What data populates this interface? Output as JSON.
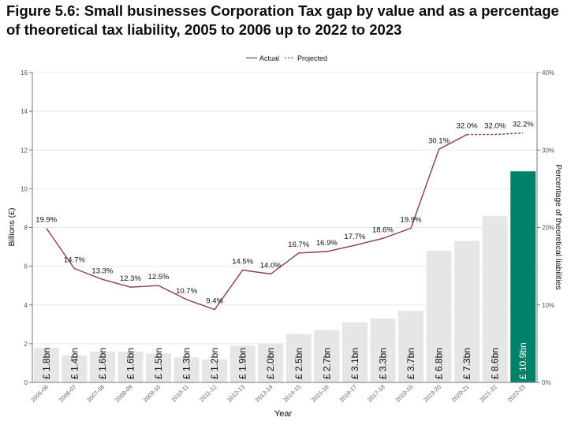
{
  "figure_title": "Figure 5.6: Small businesses Corporation Tax gap by value and as a percentage of theoretical tax liability, 2005 to 2006 up to 2022 to 2023",
  "colors": {
    "bar_default": "#e6e6e6",
    "bar_highlight": "#00826a",
    "line": "#8e3a48",
    "axis": "#767676",
    "grid": "#e8e8e8",
    "text": "#0b0c0c"
  },
  "chart_data": {
    "type": "bar+line",
    "categories": [
      "2005-06",
      "2006-07",
      "2007-08",
      "2008-09",
      "2009-10",
      "2010-11",
      "2011-12",
      "2012-13",
      "2013-14",
      "2014-15",
      "2015-16",
      "2016-17",
      "2017-18",
      "2018-19",
      "2019-20",
      "2020-21",
      "2021-22",
      "2022-23"
    ],
    "bars": {
      "values": [
        1.8,
        1.4,
        1.6,
        1.6,
        1.5,
        1.3,
        1.2,
        1.9,
        2.0,
        2.5,
        2.7,
        3.1,
        3.3,
        3.7,
        6.8,
        7.3,
        8.6,
        10.9
      ],
      "labels": [
        "£ 1.8bn",
        "£ 1.4bn",
        "£ 1.6bn",
        "£ 1.6bn",
        "£ 1.5bn",
        "£ 1.3bn",
        "£ 1.2bn",
        "£ 1.9bn",
        "£ 2.0bn",
        "£ 2.5bn",
        "£ 2.7bn",
        "£ 3.1bn",
        "£ 3.3bn",
        "£ 3.7bn",
        "£ 6.8bn",
        "£ 7.3bn",
        "£ 8.6bn",
        "£ 10.9bn"
      ],
      "highlight_index": 17
    },
    "line": {
      "values": [
        19.9,
        14.7,
        13.3,
        12.3,
        12.5,
        10.7,
        9.4,
        14.5,
        14.0,
        16.7,
        16.9,
        17.7,
        18.6,
        19.9,
        30.1,
        32.0,
        32.0,
        32.2
      ],
      "labels": [
        "19.9%",
        "14.7%",
        "13.3%",
        "12.3%",
        "12.5%",
        "10.7%",
        "9.4%",
        "14.5%",
        "14.0%",
        "16.7%",
        "16.9%",
        "17.7%",
        "18.6%",
        "19.9%",
        "30.1%",
        "32.0%",
        "32.0%",
        "32.2%"
      ],
      "actual_end_index": 15
    },
    "legend": [
      "Actual",
      "Projected"
    ],
    "legend_position": "top-center",
    "xlabel": "Year",
    "ylabel_left": "Billions (£)",
    "ylabel_right": "Percentage of theoretical liabilities",
    "ylim_left": [
      0,
      16
    ],
    "ylim_right": [
      0,
      40
    ],
    "yticks_left": [
      "0",
      "2",
      "4",
      "6",
      "8",
      "10",
      "12",
      "14",
      "16"
    ],
    "yticks_right": [
      "0%",
      "10%",
      "20%",
      "30%",
      "40%"
    ],
    "grid": "horizontal"
  }
}
